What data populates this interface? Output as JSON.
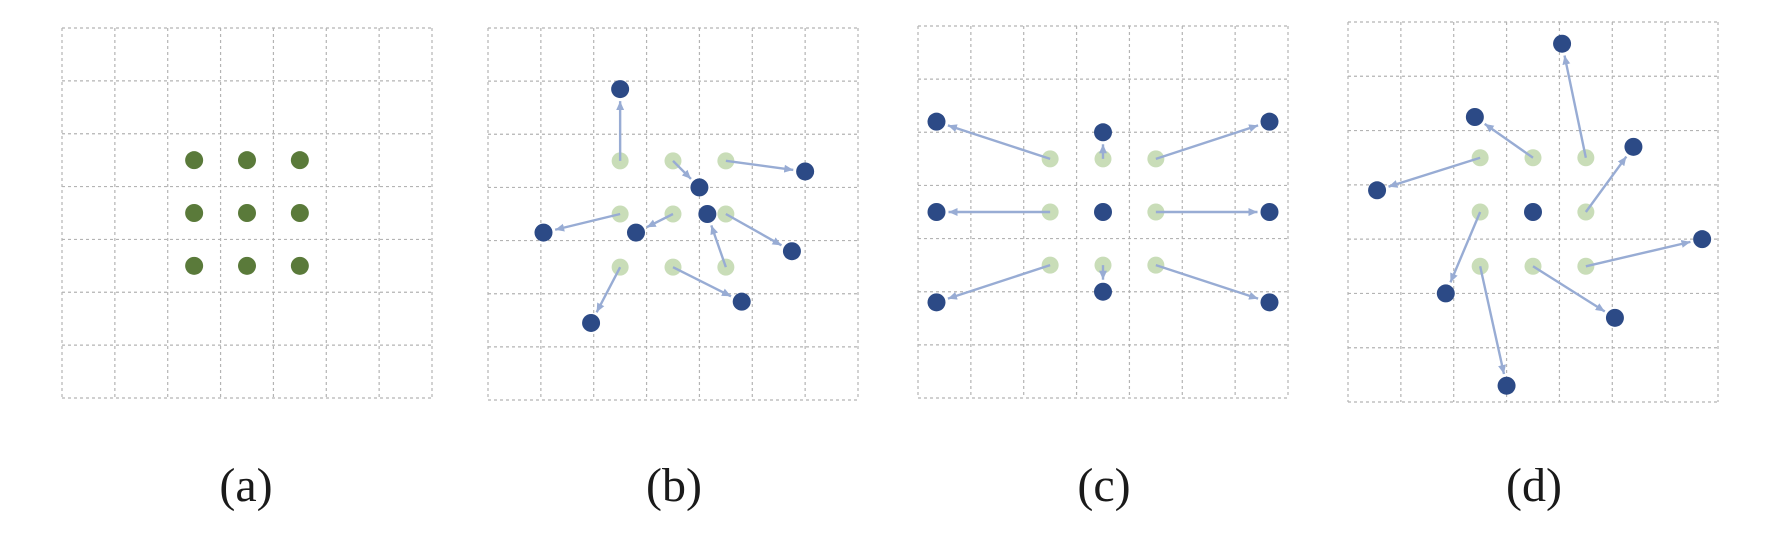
{
  "colors": {
    "grid_line": "#b4b4b4",
    "regular_sample": "#5a7a3a",
    "original_sample": "#c9ddb8",
    "offset_sample": "#2c4a86",
    "offset_arrow": "#98acd4"
  },
  "panels": [
    {
      "label": "(a)",
      "grid": {
        "rows": 7,
        "cols": 7
      },
      "samples": [
        {
          "x": 2.5,
          "y": 2.5
        },
        {
          "x": 3.5,
          "y": 2.5
        },
        {
          "x": 4.5,
          "y": 2.5
        },
        {
          "x": 2.5,
          "y": 3.5
        },
        {
          "x": 3.5,
          "y": 3.5
        },
        {
          "x": 4.5,
          "y": 3.5
        },
        {
          "x": 2.5,
          "y": 4.5
        },
        {
          "x": 3.5,
          "y": 4.5
        },
        {
          "x": 4.5,
          "y": 4.5
        }
      ]
    },
    {
      "label": "(b)",
      "grid": {
        "rows": 7,
        "cols": 7
      },
      "samples": [
        {
          "x": 2.5,
          "y": 2.5,
          "tx": 2.5,
          "ty": 1.15
        },
        {
          "x": 3.5,
          "y": 2.5,
          "tx": 4.0,
          "ty": 3.0
        },
        {
          "x": 4.5,
          "y": 2.5,
          "tx": 6.0,
          "ty": 2.7
        },
        {
          "x": 2.5,
          "y": 3.5,
          "tx": 1.05,
          "ty": 3.85
        },
        {
          "x": 3.5,
          "y": 3.5,
          "tx": 2.8,
          "ty": 3.85
        },
        {
          "x": 4.5,
          "y": 3.5,
          "tx": 5.75,
          "ty": 4.2
        },
        {
          "x": 2.5,
          "y": 4.5,
          "tx": 1.95,
          "ty": 5.55
        },
        {
          "x": 3.5,
          "y": 4.5,
          "tx": 4.8,
          "ty": 5.15
        },
        {
          "x": 4.5,
          "y": 4.5,
          "tx": 4.15,
          "ty": 3.5
        }
      ]
    },
    {
      "label": "(c)",
      "grid": {
        "rows": 7,
        "cols": 7
      },
      "samples": [
        {
          "x": 2.5,
          "y": 2.5,
          "tx": 0.35,
          "ty": 1.8
        },
        {
          "x": 3.5,
          "y": 2.5,
          "tx": 3.5,
          "ty": 2.0
        },
        {
          "x": 4.5,
          "y": 2.5,
          "tx": 6.65,
          "ty": 1.8
        },
        {
          "x": 2.5,
          "y": 3.5,
          "tx": 0.35,
          "ty": 3.5
        },
        {
          "x": 3.5,
          "y": 3.5
        },
        {
          "x": 4.5,
          "y": 3.5,
          "tx": 6.65,
          "ty": 3.5
        },
        {
          "x": 2.5,
          "y": 4.5,
          "tx": 0.35,
          "ty": 5.2
        },
        {
          "x": 3.5,
          "y": 4.5,
          "tx": 3.5,
          "ty": 5.0
        },
        {
          "x": 4.5,
          "y": 4.5,
          "tx": 6.65,
          "ty": 5.2
        }
      ]
    },
    {
      "label": "(d)",
      "grid": {
        "rows": 7,
        "cols": 7
      },
      "samples": [
        {
          "x": 2.5,
          "y": 2.5,
          "tx": 0.55,
          "ty": 3.1
        },
        {
          "x": 3.5,
          "y": 2.5,
          "tx": 2.4,
          "ty": 1.75
        },
        {
          "x": 4.5,
          "y": 2.5,
          "tx": 4.05,
          "ty": 0.4
        },
        {
          "x": 2.5,
          "y": 3.5,
          "tx": 1.85,
          "ty": 5.0
        },
        {
          "x": 3.5,
          "y": 3.5
        },
        {
          "x": 4.5,
          "y": 3.5,
          "tx": 5.4,
          "ty": 2.3
        },
        {
          "x": 2.5,
          "y": 4.5,
          "tx": 3.0,
          "ty": 6.7
        },
        {
          "x": 3.5,
          "y": 4.5,
          "tx": 5.05,
          "ty": 5.45
        },
        {
          "x": 4.5,
          "y": 4.5,
          "tx": 6.7,
          "ty": 4.0
        }
      ]
    }
  ]
}
